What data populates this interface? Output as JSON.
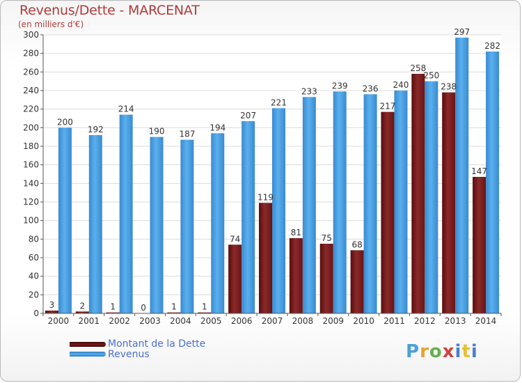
{
  "header": {
    "title": "Revenus/Dette - MARCENAT",
    "subtitle": "(en milliers d'€)"
  },
  "legend": {
    "debt_label": "Montant de la Dette",
    "revenue_label": "Revenus"
  },
  "logo": {
    "text": "Proxiti"
  },
  "colors": {
    "debt": "#7a1a1a",
    "revenue": "#4a9de0",
    "grid": "#dcdcdc",
    "axis_text": "#333333",
    "title": "#b03a3a"
  },
  "chart_data": {
    "type": "bar",
    "title": "Revenus/Dette - MARCENAT",
    "subtitle": "(en milliers d'€)",
    "xlabel": "",
    "ylabel": "",
    "ylim": [
      0,
      300
    ],
    "yticks": [
      0,
      20,
      40,
      60,
      80,
      100,
      120,
      140,
      160,
      180,
      200,
      220,
      240,
      260,
      280,
      300
    ],
    "grid": true,
    "legend_position": "bottom-left",
    "categories": [
      "2000",
      "2001",
      "2002",
      "2003",
      "2004",
      "2005",
      "2006",
      "2007",
      "2008",
      "2009",
      "2010",
      "2011",
      "2012",
      "2013",
      "2014"
    ],
    "series": [
      {
        "name": "Montant de la Dette",
        "values": [
          3,
          2,
          1,
          0,
          1,
          1,
          74,
          119,
          81,
          75,
          68,
          217,
          258,
          238,
          147
        ]
      },
      {
        "name": "Revenus",
        "values": [
          200,
          192,
          214,
          190,
          187,
          194,
          207,
          221,
          233,
          239,
          236,
          240,
          250,
          297,
          282
        ]
      }
    ]
  }
}
